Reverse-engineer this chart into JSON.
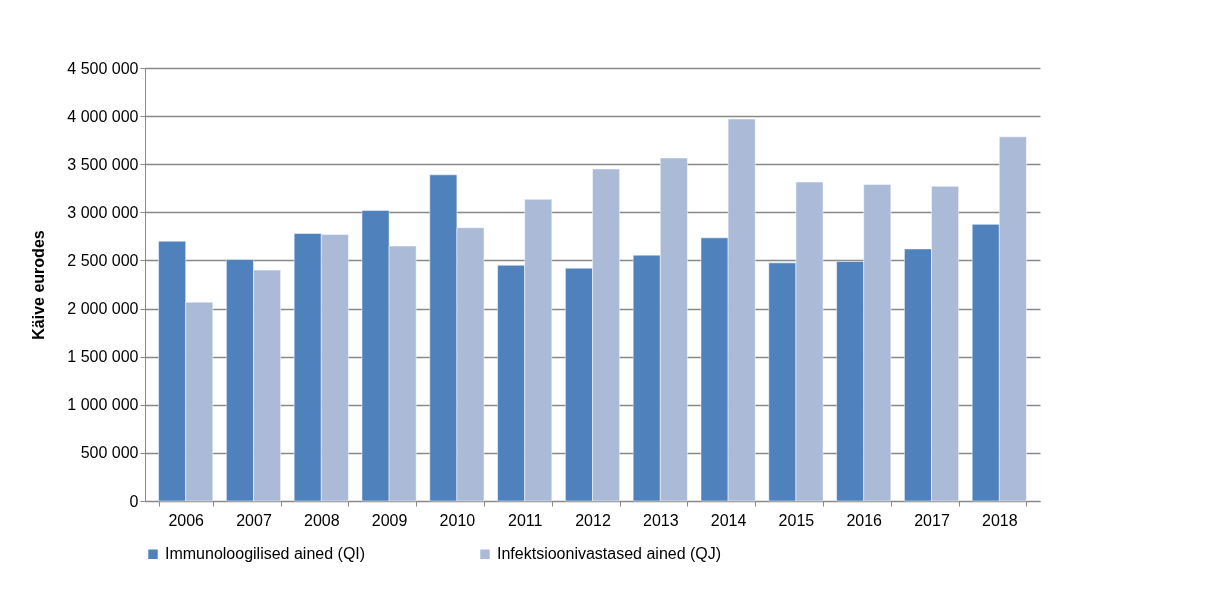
{
  "chart_data": {
    "type": "bar",
    "ylabel": "Käive eurodes",
    "categories": [
      "2006",
      "2007",
      "2008",
      "2009",
      "2010",
      "2011",
      "2012",
      "2013",
      "2014",
      "2015",
      "2016",
      "2017",
      "2018"
    ],
    "series": [
      {
        "name": "Immunoloogilised ained (QI)",
        "color": "#4f81bd",
        "values": [
          2700000,
          2510000,
          2780000,
          3020000,
          3390000,
          2450000,
          2420000,
          2555000,
          2735000,
          2475000,
          2490000,
          2620000,
          2875000
        ]
      },
      {
        "name": "Infektsioonivastased ained (QJ)",
        "color": "#aabad7",
        "values": [
          2066000,
          2400000,
          2770000,
          2650000,
          2840000,
          3135000,
          3450000,
          3565000,
          3970000,
          3315000,
          3290000,
          3270000,
          3785000
        ]
      }
    ],
    "ylim": [
      0,
      4500000
    ],
    "yticks": [
      0,
      {
        "value": 500000,
        "label": "500 000"
      },
      {
        "value": 1000000,
        "label": "1 000 000"
      },
      {
        "value": 1500000,
        "label": "1 500 000"
      },
      {
        "value": 2000000,
        "label": "2 000 000"
      },
      {
        "value": 2500000,
        "label": "2 500 000"
      },
      {
        "value": 3000000,
        "label": "3 000 000"
      },
      {
        "value": 3500000,
        "label": "3 500 000"
      },
      {
        "value": 4000000,
        "label": "4 000 000"
      },
      {
        "value": 4500000,
        "label": "4 500 000"
      }
    ],
    "grid": "y",
    "legend": "bottom"
  }
}
